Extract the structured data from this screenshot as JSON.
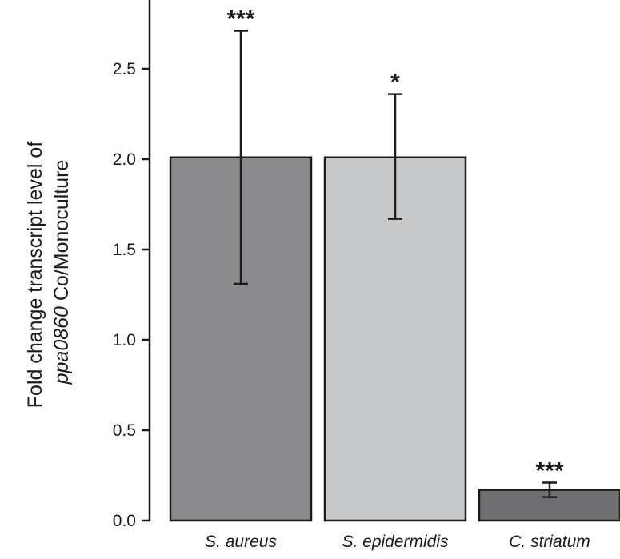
{
  "chart_data": {
    "type": "bar",
    "title": "",
    "xlabel": "",
    "ylabel": {
      "line1": "Fold change transcript level of",
      "line2_italic": "ppa0860",
      "line2_rest": " Co/Monoculture"
    },
    "ylim": [
      0,
      2.85
    ],
    "yticks": [
      0.0,
      0.5,
      1.0,
      1.5,
      2.0,
      2.5
    ],
    "ytick_labels": [
      "0.0",
      "0.5",
      "1.0",
      "1.5",
      "2.0",
      "2.5"
    ],
    "grid": false,
    "legend": "none",
    "categories": [
      "S. aureus",
      "S. epidermidis",
      "C. striatum"
    ],
    "values": [
      2.01,
      2.01,
      0.17
    ],
    "error_low": [
      1.31,
      1.67,
      0.13
    ],
    "error_high": [
      2.71,
      2.36,
      0.21
    ],
    "significance": [
      "***",
      "*",
      "***"
    ],
    "colors": [
      "#8a8a8c",
      "#c6c7c9",
      "#6f6f71"
    ],
    "edge_color": "#1a1a1a"
  }
}
